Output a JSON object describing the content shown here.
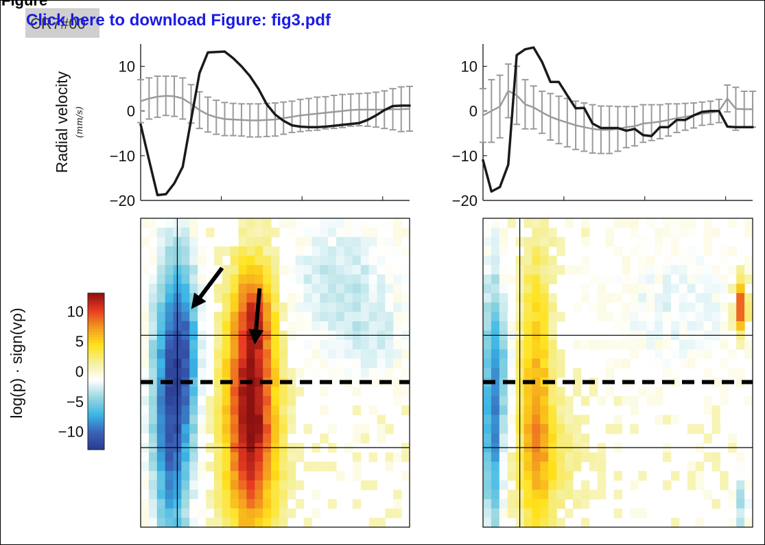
{
  "header": {
    "figure_label": "Figure",
    "badge": "CR7#00",
    "link": "Click here to download Figure: fig3.pdf"
  },
  "colorbar": {
    "label": "log(p) · sign(vρ)",
    "ticks": [
      "10",
      "5",
      "0",
      "−5",
      "−10"
    ],
    "tick_values": [
      10,
      5,
      0,
      -5,
      -10
    ],
    "range": [
      -13,
      13
    ],
    "colors": [
      "#2a3b8f",
      "#3a63b8",
      "#3ab6e6",
      "#9ad8e0",
      "#ffffff",
      "#f5f09a",
      "#ffe21a",
      "#f39a1f",
      "#e83a22",
      "#8b1010"
    ]
  },
  "chart_data": [
    {
      "type": "line",
      "panel": "top-left",
      "ylabel": "Radial velocity",
      "yunit": "(mm/s)",
      "ylim": [
        -20,
        15
      ],
      "yticks": [
        "10",
        "0",
        "−10",
        "−20"
      ],
      "ytick_values": [
        10,
        0,
        -10,
        -20
      ],
      "x": [
        0,
        1,
        2,
        3,
        4,
        5,
        6,
        7,
        8,
        9,
        10,
        11,
        12,
        13,
        14,
        15,
        16,
        17,
        18,
        19,
        20,
        21,
        22,
        23,
        24,
        25,
        26,
        27,
        28,
        29,
        30,
        31,
        32
      ],
      "series": [
        {
          "values": [
            -3,
            -11,
            -18.8,
            -18.6,
            -16.2,
            -12.5,
            -2,
            8.5,
            13.1,
            13.2,
            13.3,
            11.8,
            10,
            7.8,
            5,
            1.5,
            -0.8,
            -2.2,
            -3.2,
            -3.5,
            -3.6,
            -3.6,
            -3.5,
            -3.3,
            -3.1,
            -2.9,
            -2.7,
            -2.0,
            -1.0,
            0.2,
            1.1,
            1.2,
            1.2
          ],
          "color": "#1a1a1a",
          "width": 3.5
        },
        {
          "values": [
            2.2,
            2.8,
            3.2,
            3.4,
            3.3,
            2.8,
            1.6,
            0.2,
            -0.8,
            -1.4,
            -1.8,
            -1.9,
            -2.0,
            -2.1,
            -2.1,
            -2.0,
            -1.9,
            -1.6,
            -1.3,
            -1.0,
            -0.8,
            -0.6,
            -0.4,
            -0.2,
            0.0,
            0.2,
            0.3,
            0.3,
            0.3,
            0.3,
            0.4,
            0.4,
            0.5
          ],
          "errors": [
            4.8,
            4.6,
            4.6,
            4.4,
            4.5,
            4.6,
            4.3,
            4.1,
            3.9,
            3.8,
            3.7,
            3.6,
            3.6,
            3.7,
            3.7,
            3.7,
            3.7,
            3.6,
            3.5,
            3.6,
            3.6,
            3.7,
            3.6,
            3.7,
            3.7,
            3.6,
            3.6,
            3.7,
            3.9,
            4.2,
            4.6,
            5.0,
            5.0
          ],
          "color": "#9a9a9a",
          "width": 2.5
        }
      ]
    },
    {
      "type": "line",
      "panel": "top-right",
      "ylim": [
        -20,
        15
      ],
      "yticks": [
        "10",
        "0",
        "−10",
        "−20"
      ],
      "ytick_values": [
        10,
        0,
        -10,
        -20
      ],
      "x": [
        0,
        1,
        2,
        3,
        4,
        5,
        6,
        7,
        8,
        9,
        10,
        11,
        12,
        13,
        14,
        15,
        16,
        17,
        18,
        19,
        20,
        21,
        22,
        23,
        24,
        25,
        26,
        27,
        28,
        29,
        30,
        31,
        32
      ],
      "series": [
        {
          "values": [
            -11,
            -18,
            -17,
            -12,
            12.5,
            13.8,
            14.2,
            11,
            6.5,
            6.5,
            3.5,
            0.6,
            0.7,
            -2.8,
            -3.8,
            -3.8,
            -3.8,
            -4.4,
            -4.0,
            -5.4,
            -5.6,
            -3.6,
            -3.6,
            -2.0,
            -2.0,
            -1.0,
            -0.2,
            0.0,
            0.0,
            -3.5,
            -3.6,
            -3.6,
            -3.6
          ],
          "color": "#1a1a1a",
          "width": 3.5
        },
        {
          "values": [
            -1,
            0,
            1,
            4.5,
            3.5,
            1.5,
            0.8,
            -0.3,
            -1.3,
            -2.0,
            -2.6,
            -3.2,
            -3.6,
            -4.0,
            -4.2,
            -4.2,
            -4.0,
            -3.6,
            -3.4,
            -2.8,
            -2.6,
            -2.4,
            -2.0,
            -1.6,
            -1.3,
            -1.0,
            -0.6,
            -0.4,
            0.0,
            2.8,
            0.5,
            0.4,
            0.4
          ],
          "errors": [
            6,
            7,
            7,
            6,
            6.5,
            5.5,
            4.8,
            4.7,
            5.2,
            5.3,
            5.4,
            5.4,
            5.4,
            5.4,
            5.3,
            5.3,
            5.0,
            4.6,
            4.4,
            4.2,
            4.0,
            3.8,
            3.6,
            3.2,
            3.0,
            2.8,
            2.6,
            2.6,
            2.6,
            3.0,
            4.8,
            4.0,
            4.0
          ],
          "color": "#9a9a9a",
          "width": 2.5
        }
      ]
    },
    {
      "type": "heatmap",
      "panel": "bottom-left",
      "rows": 33,
      "cols": 33,
      "components": [
        {
          "c": 3.3,
          "r": 19.5,
          "sc": 1.7,
          "sr": 11,
          "a": -11.5
        },
        {
          "c": 5.3,
          "r": 13,
          "sc": 1.2,
          "sr": 6,
          "a": -5
        },
        {
          "c": 13,
          "r": 20.5,
          "sc": 2.2,
          "sr": 9,
          "a": 13.5
        },
        {
          "c": 13.5,
          "r": 9.5,
          "sc": 1.6,
          "sr": 3.5,
          "a": 5
        },
        {
          "c": 24,
          "r": 6.5,
          "sc": 5,
          "sr": 5,
          "a": -3.2
        },
        {
          "c": 28,
          "r": 13,
          "sc": 3,
          "sr": 2.5,
          "a": -2
        }
      ],
      "overlay": {
        "dashed_row": 17.5,
        "v_col": 4.5,
        "h_rows": [
          12.5,
          24.5
        ]
      },
      "arrows": [
        {
          "from": [
            10,
            5.3
          ],
          "to": [
            6.2,
            9.7
          ]
        },
        {
          "from": [
            14.6,
            7.5
          ],
          "to": [
            14,
            13.5
          ]
        }
      ]
    },
    {
      "type": "heatmap",
      "panel": "bottom-right",
      "rows": 33,
      "cols": 33,
      "components": [
        {
          "c": 0.7,
          "r": 20,
          "sc": 0.8,
          "sr": 10,
          "a": -9.5
        },
        {
          "c": 2.3,
          "r": 15,
          "sc": 0.7,
          "sr": 5,
          "a": -3.5
        },
        {
          "c": 6,
          "r": 19.5,
          "sc": 1.4,
          "sr": 11,
          "a": 6.5
        },
        {
          "c": 31,
          "r": 9,
          "sc": 0.6,
          "sr": 2,
          "a": 10
        },
        {
          "c": 31.2,
          "r": 30,
          "sc": 0.6,
          "sr": 2.5,
          "a": -4
        },
        {
          "c": 23,
          "r": 9,
          "sc": 6,
          "sr": 5,
          "a": -2
        },
        {
          "c": 8,
          "r": 25,
          "sc": 3,
          "sr": 4,
          "a": 2
        }
      ],
      "overlay": {
        "dashed_row": 17.5,
        "v_col": 4.5,
        "h_rows": [
          12.5,
          24.5
        ]
      },
      "arrows": []
    }
  ]
}
